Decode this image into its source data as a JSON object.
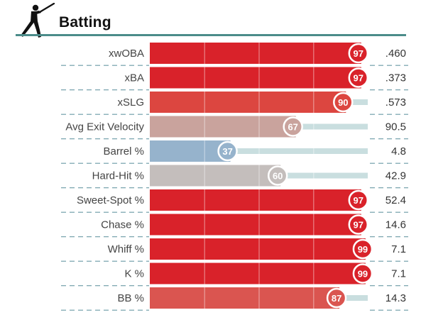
{
  "header": {
    "title": "Batting",
    "icon": "batter-silhouette-icon",
    "rule_color": "#4b8c8a"
  },
  "chart_data": {
    "type": "bar",
    "orientation": "horizontal",
    "title": "Batting",
    "xlim": [
      0,
      100
    ],
    "categories": [
      "xwOBA",
      "xBA",
      "xSLG",
      "Avg Exit Velocity",
      "Barrel %",
      "Hard-Hit %",
      "Sweet-Spot %",
      "Chase %",
      "Whiff %",
      "K %",
      "BB %"
    ],
    "series": [
      {
        "values": [
          97,
          97,
          90,
          67,
          37,
          60,
          97,
          97,
          99,
          99,
          87
        ]
      }
    ],
    "stat_values": [
      ".460",
      ".373",
      ".573",
      "90.5",
      "4.8",
      "42.9",
      "52.4",
      "14.6",
      "7.1",
      "7.1",
      "14.3"
    ],
    "colors": [
      "#d9222a",
      "#d9222a",
      "#dc4640",
      "#c9a39d",
      "#96b3cc",
      "#c4bebc",
      "#d9222a",
      "#d9222a",
      "#d9222a",
      "#d9222a",
      "#da5550"
    ],
    "track_color": "#c9dedf",
    "grid": true
  }
}
